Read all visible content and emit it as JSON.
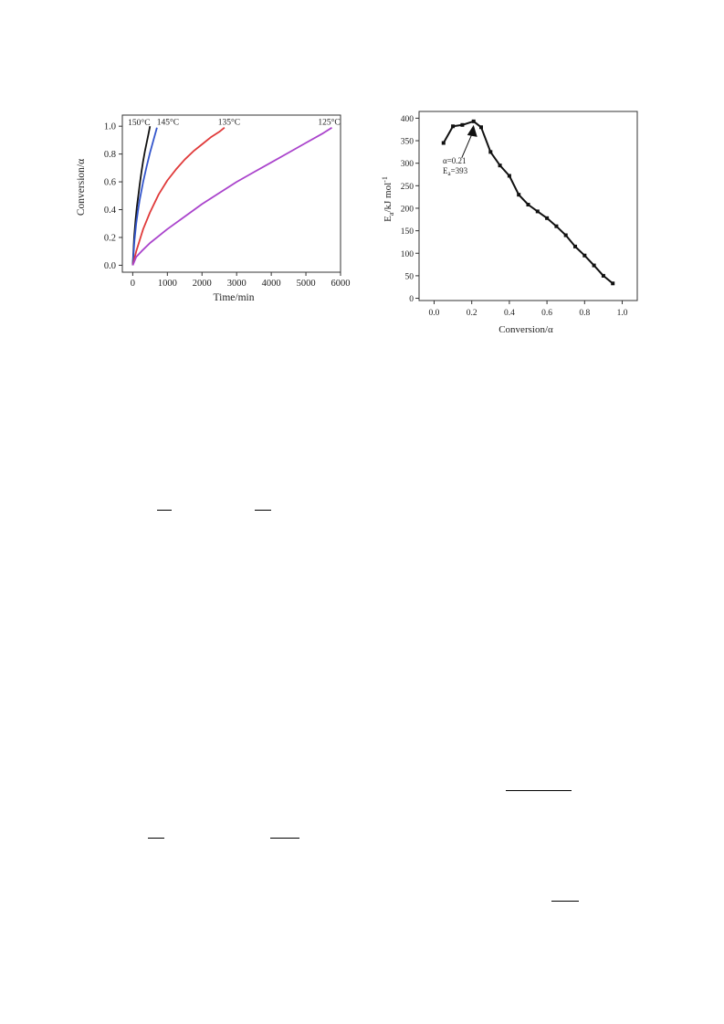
{
  "chart_data": [
    {
      "type": "line",
      "xlabel": "Time/min",
      "ylabel": "Conversion/α",
      "xlim": [
        -300,
        6000
      ],
      "ylim": [
        -0.05,
        1.08
      ],
      "xticks": [
        0,
        1000,
        2000,
        3000,
        4000,
        5000,
        6000
      ],
      "yticks": [
        0.0,
        0.2,
        0.4,
        0.6,
        0.8,
        1.0
      ],
      "ytick_labels": [
        "0.0",
        "0.2",
        "0.4",
        "0.6",
        "0.8",
        "1.0"
      ],
      "grid": false,
      "series": [
        {
          "name": "150°C",
          "color": "#111111",
          "x": [
            0,
            40,
            80,
            120,
            160,
            200,
            250,
            300,
            350,
            400,
            450,
            500
          ],
          "y": [
            0,
            0.2,
            0.32,
            0.42,
            0.5,
            0.58,
            0.67,
            0.75,
            0.82,
            0.88,
            0.94,
            1.0
          ]
        },
        {
          "name": "145°C",
          "color": "#3355cc",
          "x": [
            0,
            50,
            100,
            150,
            200,
            300,
            400,
            500,
            600,
            700
          ],
          "y": [
            0,
            0.18,
            0.3,
            0.39,
            0.47,
            0.6,
            0.71,
            0.81,
            0.9,
            0.99
          ]
        },
        {
          "name": "135°C",
          "color": "#e03a3a",
          "x": [
            0,
            100,
            200,
            300,
            500,
            750,
            1000,
            1250,
            1500,
            1750,
            2000,
            2250,
            2500,
            2650
          ],
          "y": [
            0,
            0.1,
            0.18,
            0.26,
            0.38,
            0.51,
            0.61,
            0.69,
            0.76,
            0.82,
            0.87,
            0.92,
            0.96,
            0.99
          ]
        },
        {
          "name": "125°C",
          "color": "#aa44cc",
          "x": [
            0,
            100,
            250,
            500,
            750,
            1000,
            1500,
            2000,
            2500,
            3000,
            3500,
            4000,
            4500,
            5000,
            5500,
            5750
          ],
          "y": [
            0,
            0.06,
            0.1,
            0.16,
            0.21,
            0.26,
            0.35,
            0.44,
            0.52,
            0.6,
            0.67,
            0.74,
            0.81,
            0.88,
            0.95,
            0.99
          ]
        }
      ]
    },
    {
      "type": "line",
      "xlabel": "Conversion/α",
      "ylabel": "Ea/kJ mol-1",
      "ylabel_parts": {
        "main": "E",
        "sub": "a",
        "mid": "/kJ mol",
        "sup": "-1"
      },
      "xlim": [
        -0.08,
        1.08
      ],
      "ylim": [
        -5,
        415
      ],
      "xticks": [
        0.0,
        0.2,
        0.4,
        0.6,
        0.8,
        1.0
      ],
      "xtick_labels": [
        "0.0",
        "0.2",
        "0.4",
        "0.6",
        "0.8",
        "1.0"
      ],
      "yticks": [
        0,
        50,
        100,
        150,
        200,
        250,
        300,
        350,
        400
      ],
      "grid": false,
      "annotation": {
        "line1": "α=0.21",
        "line2_main": "E",
        "line2_sub": "a",
        "line2_rest": "=393",
        "x": 0.21,
        "y": 393
      },
      "series": [
        {
          "name": "",
          "color": "#111111",
          "x": [
            0.05,
            0.1,
            0.15,
            0.21,
            0.25,
            0.3,
            0.35,
            0.4,
            0.45,
            0.5,
            0.55,
            0.6,
            0.65,
            0.7,
            0.75,
            0.8,
            0.85,
            0.9,
            0.95
          ],
          "y": [
            345,
            382,
            385,
            393,
            380,
            325,
            295,
            272,
            230,
            208,
            193,
            178,
            160,
            140,
            115,
            95,
            73,
            50,
            33
          ]
        }
      ]
    }
  ]
}
